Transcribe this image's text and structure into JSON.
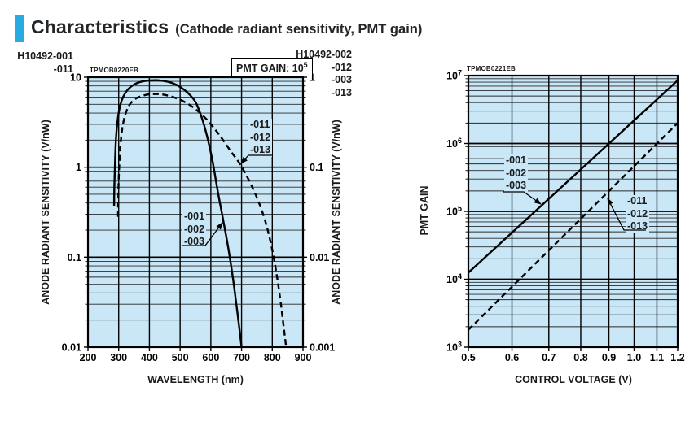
{
  "header": {
    "title": "Characteristics",
    "subtitle": "(Cathode radiant sensitivity, PMT gain)",
    "accent_color": "#29abe2"
  },
  "left_panel": {
    "part_left": [
      "H10492-001",
      "-011"
    ],
    "part_right": [
      "H10492-002",
      "-012",
      "-003",
      "-013"
    ],
    "code": "TPMOB0220EB",
    "gain_note": {
      "base": "PMT GAIN: 10",
      "exp": "5"
    },
    "xlabel": "WAVELENGTH (nm)",
    "ylabel_left": "ANODE RADIANT SENSITIVITY (V/nW)",
    "ylabel_right": "ANODE RADIANT SENSITIVITY (V/nW)",
    "annotations": {
      "dashed": [
        "-011",
        "-012",
        "-013"
      ],
      "solid": [
        "-001",
        "-002",
        "-003"
      ]
    }
  },
  "right_panel": {
    "code": "TPMOB0221EB",
    "xlabel": "CONTROL VOLTAGE (V)",
    "ylabel": "PMT GAIN",
    "annotations": {
      "solid": [
        "-001",
        "-002",
        "-003"
      ],
      "dashed": [
        "-011",
        "-012",
        "-013"
      ]
    }
  },
  "colors": {
    "plot_bg": "#c9e7f6",
    "curve": "#000000",
    "grid_minor": "#2a2a2a",
    "grid_major": "#000000"
  },
  "chart_data": [
    {
      "type": "line",
      "title": "Anode radiant sensitivity vs wavelength",
      "x_scale": "linear",
      "y_scale": "log",
      "xlim": [
        200,
        900
      ],
      "ylim": [
        0.01,
        10
      ],
      "ylim_right": [
        0.001,
        1
      ],
      "grid": true,
      "xlabel": "WAVELENGTH (nm)",
      "ylabel": "ANODE RADIANT SENSITIVITY (V/nW)",
      "x_ticks": [
        "200",
        "300",
        "400",
        "500",
        "600",
        "700",
        "800",
        "900"
      ],
      "y_ticks_left": [
        "10",
        "1",
        "0.1",
        "0.01"
      ],
      "y_ticks_right": [
        "1",
        "0.1",
        "0.01",
        "0.001"
      ],
      "series": [
        {
          "name": "-001 / -002 / -003",
          "style": "solid",
          "x": [
            285,
            286,
            288,
            291,
            296,
            304,
            315,
            330,
            350,
            375,
            400,
            425,
            450,
            475,
            500,
            525,
            550,
            570,
            588,
            605,
            622,
            641,
            658,
            673,
            686,
            695,
            700
          ],
          "y": [
            0.37,
            0.62,
            1.1,
            2.0,
            3.2,
            4.7,
            6.1,
            7.3,
            8.3,
            8.95,
            9.2,
            9.25,
            9.05,
            8.6,
            7.8,
            6.7,
            5.3,
            3.6,
            2.2,
            1.2,
            0.55,
            0.25,
            0.12,
            0.055,
            0.025,
            0.014,
            0.01
          ]
        },
        {
          "name": "-011 / -012 / -013",
          "style": "dashed",
          "x": [
            298,
            299,
            301,
            305,
            311,
            320,
            333,
            350,
            370,
            392,
            415,
            440,
            465,
            490,
            515,
            540,
            565,
            590,
            615,
            640,
            665,
            690,
            715,
            740,
            762,
            782,
            800,
            815,
            827,
            837,
            845
          ],
          "y": [
            0.28,
            0.5,
            0.9,
            1.6,
            2.6,
            3.7,
            4.8,
            5.6,
            6.1,
            6.4,
            6.5,
            6.45,
            6.2,
            5.8,
            5.3,
            4.7,
            4.0,
            3.3,
            2.6,
            2.0,
            1.5,
            1.15,
            0.82,
            0.55,
            0.36,
            0.22,
            0.12,
            0.062,
            0.032,
            0.017,
            0.01
          ]
        }
      ]
    },
    {
      "type": "line",
      "title": "PMT gain vs control voltage",
      "x_scale": "log",
      "y_scale": "log",
      "xlim": [
        0.5,
        1.2
      ],
      "ylim": [
        1000,
        10000000
      ],
      "grid": true,
      "xlabel": "CONTROL VOLTAGE (V)",
      "ylabel": "PMT GAIN",
      "x_ticks": [
        "0.5",
        "0.6",
        "0.7",
        "0.8",
        "0.9",
        "1.0",
        "1.1",
        "1.2"
      ],
      "y_ticks_left": [
        "10^7",
        "10^6",
        "10^5",
        "10^4",
        "10^3"
      ],
      "series": [
        {
          "name": "-001 / -002 / -003",
          "style": "solid",
          "x": [
            0.5,
            1.2
          ],
          "y": [
            12500,
            8500000
          ]
        },
        {
          "name": "-011 / -012 / -013",
          "style": "dashed",
          "x": [
            0.5,
            1.2
          ],
          "y": [
            1800,
            2000000
          ]
        }
      ]
    }
  ]
}
